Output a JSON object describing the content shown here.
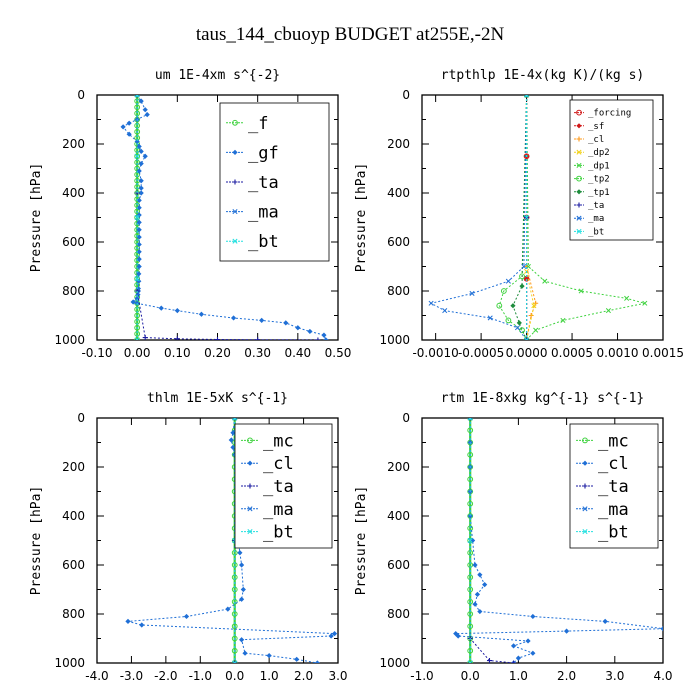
{
  "suptitle": "taus_144_cbuoyp  BUDGET at255E,-2N",
  "colors": {
    "green": "#3fd23f",
    "blue": "#1f6fd6",
    "navy": "#1a1aa0",
    "cyan": "#22e0e0",
    "red": "#d01818",
    "orange": "#ff9a1a",
    "yellow": "#f2d21a",
    "darkgreen": "#1e8c3c"
  },
  "chart_data": [
    {
      "type": "line",
      "title": "um  1E-4xm s^{-2}",
      "xlabel": "",
      "ylabel": "Pressure [hPa]",
      "xlim": [
        -0.1,
        0.5
      ],
      "ylim": [
        1000,
        0
      ],
      "xticks": [
        "-0.10",
        "0.00",
        "0.10",
        "0.20",
        "0.30",
        "0.40",
        "0.50"
      ],
      "yticks": [
        "0",
        "200",
        "400",
        "600",
        "800",
        "1000"
      ],
      "legend_style": "big",
      "series": [
        {
          "name": "_f",
          "color": "green",
          "x": [
            0,
            0,
            0,
            0,
            0,
            0,
            0,
            0,
            0,
            0,
            0,
            0,
            0,
            0,
            0,
            0,
            0,
            0,
            0,
            0,
            0,
            0,
            0,
            0,
            0,
            0,
            0,
            0,
            0,
            0,
            0,
            0,
            0,
            0,
            0,
            0,
            0,
            0,
            0,
            0,
            0
          ],
          "y": [
            0,
            25,
            50,
            75,
            100,
            125,
            150,
            175,
            200,
            225,
            250,
            275,
            300,
            325,
            350,
            375,
            400,
            425,
            450,
            475,
            500,
            525,
            550,
            575,
            600,
            625,
            650,
            675,
            700,
            725,
            750,
            775,
            800,
            825,
            850,
            875,
            900,
            925,
            950,
            975,
            1000
          ]
        },
        {
          "name": "_gf",
          "color": "blue",
          "x": [
            0.0,
            0.01,
            0.02,
            0.025,
            0.0,
            -0.02,
            -0.035,
            -0.02,
            0.0,
            0.005,
            0.01,
            0.02,
            0.01,
            0.005,
            0.01,
            0.01,
            0.01,
            0.005,
            0.005,
            0.005,
            0.005,
            0.005,
            0.005,
            0.005,
            0.005,
            0.005,
            0.005,
            0.004,
            0.004,
            0.003,
            0.003,
            0.002,
            0.0,
            -0.01,
            0.0,
            0.06,
            0.1,
            0.16,
            0.24,
            0.31,
            0.37,
            0.4,
            0.43,
            0.465,
            0.47
          ],
          "y": [
            0,
            25,
            60,
            80,
            100,
            115,
            130,
            160,
            190,
            210,
            230,
            250,
            280,
            310,
            350,
            380,
            400,
            430,
            460,
            490,
            520,
            550,
            580,
            610,
            640,
            670,
            700,
            730,
            760,
            790,
            800,
            815,
            830,
            845,
            850,
            870,
            880,
            895,
            910,
            920,
            930,
            950,
            965,
            980,
            1000
          ]
        },
        {
          "name": "_ta",
          "color": "navy",
          "x": [
            0.0,
            0.0,
            0.0,
            0.02,
            0.1,
            0.2,
            0.3,
            0.45
          ],
          "y": [
            0,
            400,
            800,
            990,
            995,
            998,
            999,
            1000
          ]
        },
        {
          "name": "_ma",
          "color": "blue",
          "x": [
            0,
            0,
            0,
            0,
            0
          ],
          "y": [
            0,
            250,
            500,
            750,
            1000
          ]
        },
        {
          "name": "_bt",
          "color": "cyan",
          "x": [
            0,
            0,
            0,
            0,
            0
          ],
          "y": [
            0,
            250,
            500,
            750,
            1000
          ]
        }
      ]
    },
    {
      "type": "line",
      "title": "rtpthlp  1E-4x(kg K)/(kg s)",
      "xlabel": "",
      "ylabel": "Pressure [hPa]",
      "xlim": [
        -0.00115,
        0.0015
      ],
      "ylim": [
        1000,
        0
      ],
      "xticks": [
        "-0.0010",
        "-0.0005",
        "0.0000",
        "0.0005",
        "0.0010",
        "0.0015"
      ],
      "xtick_values": [
        -0.001,
        -0.0005,
        0.0,
        0.0005,
        0.001,
        0.0015
      ],
      "yticks": [
        "0",
        "200",
        "400",
        "600",
        "800",
        "1000"
      ],
      "legend_style": "small",
      "series": [
        {
          "name": "_forcing",
          "color": "red",
          "x": [
            0,
            0,
            0,
            0,
            0
          ],
          "y": [
            0,
            250,
            500,
            750,
            1000
          ]
        },
        {
          "name": "_sf",
          "color": "red",
          "x": [
            0,
            0,
            0,
            0,
            0
          ],
          "y": [
            0,
            250,
            500,
            750,
            1000
          ]
        },
        {
          "name": "_cl",
          "color": "orange",
          "x": [
            0.0,
            0.0,
            0.0001,
            5e-05,
            0.0
          ],
          "y": [
            0,
            700,
            850,
            900,
            1000
          ]
        },
        {
          "name": "_dp2",
          "color": "yellow",
          "x": [
            0.0,
            0.0,
            8e-05,
            0.0
          ],
          "y": [
            0,
            720,
            860,
            1000
          ]
        },
        {
          "name": "_dp1",
          "color": "green",
          "x": [
            0.0,
            2e-05,
            0.0002,
            0.0006,
            0.0011,
            0.0013,
            0.0009,
            0.0004,
            0.0001,
            0.0
          ],
          "y": [
            0,
            700,
            760,
            800,
            830,
            850,
            880,
            920,
            960,
            1000
          ]
        },
        {
          "name": "_tp2",
          "color": "green",
          "x": [
            0.0,
            -5e-05,
            -0.00025,
            -0.0003,
            -0.0002,
            -5e-05,
            0.0
          ],
          "y": [
            0,
            740,
            800,
            860,
            920,
            960,
            1000
          ]
        },
        {
          "name": "_tp1",
          "color": "darkgreen",
          "x": [
            0.0,
            -5e-05,
            -0.00015,
            -8e-05,
            0.0
          ],
          "y": [
            0,
            780,
            860,
            930,
            1000
          ]
        },
        {
          "name": "_ta",
          "color": "navy",
          "x": [
            0,
            0,
            0
          ],
          "y": [
            0,
            500,
            1000
          ]
        },
        {
          "name": "_ma",
          "color": "blue",
          "x": [
            0.0,
            -3e-05,
            -0.0002,
            -0.0006,
            -0.00105,
            -0.0009,
            -0.0004,
            -0.0001,
            0.0
          ],
          "y": [
            0,
            700,
            760,
            810,
            850,
            880,
            910,
            950,
            1000
          ]
        },
        {
          "name": "_bt",
          "color": "cyan",
          "x": [
            0,
            0,
            0
          ],
          "y": [
            0,
            500,
            1000
          ]
        }
      ]
    },
    {
      "type": "line",
      "title": "thlm  1E-5xK s^{-1}",
      "xlabel": "",
      "ylabel": "Pressure [hPa]",
      "xlim": [
        -4.0,
        3.0
      ],
      "ylim": [
        1000,
        0
      ],
      "xticks": [
        "-4.0",
        "-3.0",
        "-2.0",
        "-1.0",
        "0.0",
        "1.0",
        "2.0",
        "3.0"
      ],
      "yticks": [
        "0",
        "200",
        "400",
        "600",
        "800",
        "1000"
      ],
      "legend_style": "big",
      "series": [
        {
          "name": "_mc",
          "color": "green",
          "x": [
            0,
            0,
            0,
            0,
            0,
            0,
            0,
            0,
            0,
            0,
            0,
            0,
            0,
            0,
            0,
            0,
            0,
            0,
            0,
            0,
            0
          ],
          "y": [
            0,
            50,
            100,
            150,
            200,
            250,
            300,
            350,
            400,
            450,
            500,
            550,
            600,
            650,
            700,
            750,
            800,
            850,
            900,
            950,
            1000
          ]
        },
        {
          "name": "_cl",
          "color": "blue",
          "x": [
            0.0,
            -0.05,
            -0.1,
            -0.05,
            0.0,
            0.05,
            0.1,
            0.05,
            0.05,
            0.1,
            0.1,
            0.1,
            0.15,
            0.2,
            0.25,
            0.2,
            -0.2,
            -1.4,
            -3.1,
            -2.7,
            2.9,
            2.8,
            0.2,
            0.3,
            1.0,
            1.8,
            2.4
          ],
          "y": [
            0,
            60,
            90,
            120,
            150,
            200,
            250,
            300,
            350,
            400,
            450,
            500,
            550,
            600,
            700,
            740,
            780,
            810,
            830,
            845,
            880,
            890,
            905,
            960,
            970,
            985,
            1000
          ]
        },
        {
          "name": "_ta",
          "color": "navy",
          "x": [
            0,
            0,
            0
          ],
          "y": [
            0,
            500,
            1000
          ]
        },
        {
          "name": "_ma",
          "color": "blue",
          "x": [
            0,
            0,
            0
          ],
          "y": [
            0,
            500,
            1000
          ]
        },
        {
          "name": "_bt",
          "color": "cyan",
          "x": [
            0,
            0,
            0
          ],
          "y": [
            0,
            500,
            1000
          ]
        }
      ]
    },
    {
      "type": "line",
      "title": "rtm  1E-8xkg kg^{-1} s^{-1}",
      "xlabel": "",
      "ylabel": "Pressure [hPa]",
      "xlim": [
        -1.0,
        4.0
      ],
      "ylim": [
        1000,
        0
      ],
      "xticks": [
        "-1.0",
        "0.0",
        "1.0",
        "2.0",
        "3.0",
        "4.0"
      ],
      "yticks": [
        "0",
        "200",
        "400",
        "600",
        "800",
        "1000"
      ],
      "legend_style": "big",
      "series": [
        {
          "name": "_mc",
          "color": "green",
          "x": [
            0,
            0,
            0,
            0,
            0,
            0,
            0,
            0,
            0,
            0,
            0,
            0,
            0,
            0,
            0,
            0,
            0,
            0,
            0,
            0,
            0
          ],
          "y": [
            0,
            50,
            100,
            150,
            200,
            250,
            300,
            350,
            400,
            450,
            500,
            550,
            600,
            650,
            700,
            750,
            800,
            850,
            900,
            950,
            1000
          ]
        },
        {
          "name": "_cl",
          "color": "blue",
          "x": [
            0.0,
            0.0,
            0.0,
            0.0,
            0.0,
            0.05,
            0.1,
            0.2,
            0.3,
            0.15,
            0.1,
            0.2,
            1.3,
            2.8,
            4.0,
            2.0,
            -0.3,
            -0.25,
            1.2,
            0.9,
            1.3,
            1.0,
            0.9
          ],
          "y": [
            0,
            100,
            200,
            300,
            400,
            500,
            600,
            640,
            680,
            720,
            760,
            790,
            810,
            830,
            860,
            870,
            880,
            890,
            910,
            930,
            960,
            980,
            1000
          ]
        },
        {
          "name": "_ta",
          "color": "navy",
          "x": [
            0.0,
            0.0,
            0.4,
            0.9
          ],
          "y": [
            0,
            900,
            990,
            1000
          ]
        },
        {
          "name": "_ma",
          "color": "blue",
          "x": [
            0,
            0,
            0
          ],
          "y": [
            0,
            500,
            1000
          ]
        },
        {
          "name": "_bt",
          "color": "cyan",
          "x": [
            0,
            0,
            0
          ],
          "y": [
            0,
            500,
            1000
          ]
        }
      ]
    }
  ]
}
